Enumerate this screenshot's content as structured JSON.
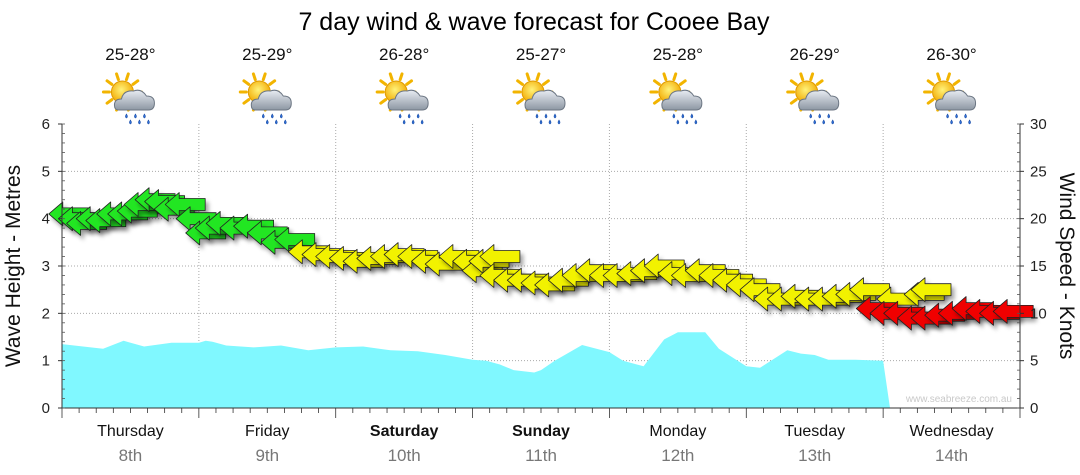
{
  "chart_data": {
    "type": "line",
    "title": "7 day wind & wave forecast for Cooee Bay",
    "ylabel_left": "Wave Height - Metres",
    "ylabel_right": "Wind Speed - Knots",
    "ylim_left": [
      0,
      6
    ],
    "ylim_right": [
      0,
      30
    ],
    "yticks_left": [
      "0",
      "1",
      "2",
      "3",
      "4",
      "5",
      "6"
    ],
    "yticks_right": [
      "0",
      "5",
      "10",
      "15",
      "20",
      "25",
      "30"
    ],
    "grid": true,
    "days": [
      {
        "day": "Thursday",
        "date": "8th",
        "bold": false,
        "temp": "25-28°",
        "icon": "sun-cloud-rain-icon"
      },
      {
        "day": "Friday",
        "date": "9th",
        "bold": false,
        "temp": "25-29°",
        "icon": "sun-cloud-rain-icon"
      },
      {
        "day": "Saturday",
        "date": "10th",
        "bold": true,
        "temp": "26-28°",
        "icon": "sun-cloud-rain-icon"
      },
      {
        "day": "Sunday",
        "date": "11th",
        "bold": true,
        "temp": "25-27°",
        "icon": "sun-cloud-rain-icon"
      },
      {
        "day": "Monday",
        "date": "12th",
        "bold": false,
        "temp": "25-28°",
        "icon": "sun-cloud-rain-icon"
      },
      {
        "day": "Tuesday",
        "date": "13th",
        "bold": false,
        "temp": "26-29°",
        "icon": "sun-cloud-rain-icon"
      },
      {
        "day": "Wednesday",
        "date": "14th",
        "bold": false,
        "temp": "26-30°",
        "icon": "sun-cloud-rain-icon"
      }
    ],
    "wave_series": {
      "units": "metres",
      "x_days": [
        0,
        0.3,
        0.45,
        0.6,
        0.8,
        1.0,
        1.05,
        1.1,
        1.2,
        1.4,
        1.6,
        1.8,
        2.0,
        2.2,
        2.4,
        2.6,
        2.8,
        3.0,
        3.1,
        3.2,
        3.3,
        3.45,
        3.5,
        3.6,
        3.8,
        4.0,
        4.1,
        4.25,
        4.4,
        4.5,
        4.7,
        4.8,
        5.0,
        5.1,
        5.3,
        5.4,
        5.5,
        5.6,
        5.8,
        6.0,
        6.05,
        6.1,
        6.2
      ],
      "values": [
        1.35,
        1.25,
        1.42,
        1.3,
        1.38,
        1.38,
        1.42,
        1.4,
        1.32,
        1.28,
        1.32,
        1.22,
        1.28,
        1.3,
        1.22,
        1.2,
        1.12,
        1.02,
        1.0,
        0.92,
        0.8,
        0.75,
        0.8,
        1.0,
        1.33,
        1.18,
        1.0,
        0.88,
        1.45,
        1.6,
        1.6,
        1.25,
        0.88,
        0.85,
        1.22,
        1.15,
        1.12,
        1.02,
        1.02,
        1.0,
        0.0,
        0.0,
        0.0
      ],
      "color": "#80f8ff"
    },
    "wind_series": {
      "units": "knots",
      "color_legend": {
        "green": "#22e622",
        "yellow": "#f2f200",
        "red": "#f00000"
      },
      "points": [
        [
          0.05,
          20.5,
          "green"
        ],
        [
          0.12,
          20.0,
          "green"
        ],
        [
          0.18,
          19.5,
          "green"
        ],
        [
          0.25,
          20.0,
          "green"
        ],
        [
          0.32,
          19.8,
          "green"
        ],
        [
          0.4,
          20.5,
          "green"
        ],
        [
          0.48,
          20.5,
          "green"
        ],
        [
          0.55,
          20.8,
          "green"
        ],
        [
          0.6,
          21.5,
          "green"
        ],
        [
          0.68,
          22.0,
          "green"
        ],
        [
          0.75,
          21.8,
          "green"
        ],
        [
          0.82,
          21.0,
          "green"
        ],
        [
          0.9,
          21.5,
          "green"
        ],
        [
          0.98,
          20.0,
          "green"
        ],
        [
          1.05,
          18.5,
          "green"
        ],
        [
          1.12,
          19.0,
          "green"
        ],
        [
          1.2,
          19.5,
          "green"
        ],
        [
          1.3,
          19.0,
          "green"
        ],
        [
          1.4,
          19.2,
          "green"
        ],
        [
          1.5,
          18.5,
          "green"
        ],
        [
          1.6,
          17.5,
          "green"
        ],
        [
          1.7,
          17.8,
          "green"
        ],
        [
          1.8,
          16.5,
          "yellow"
        ],
        [
          1.9,
          16.2,
          "yellow"
        ],
        [
          2.0,
          16.0,
          "yellow"
        ],
        [
          2.1,
          15.8,
          "yellow"
        ],
        [
          2.2,
          15.5,
          "yellow"
        ],
        [
          2.3,
          15.8,
          "yellow"
        ],
        [
          2.4,
          16.0,
          "yellow"
        ],
        [
          2.5,
          16.2,
          "yellow"
        ],
        [
          2.6,
          16.0,
          "yellow"
        ],
        [
          2.7,
          15.5,
          "yellow"
        ],
        [
          2.8,
          15.2,
          "yellow"
        ],
        [
          2.9,
          16.0,
          "yellow"
        ],
        [
          3.0,
          15.5,
          "yellow"
        ],
        [
          3.07,
          14.5,
          "yellow"
        ],
        [
          3.12,
          15.5,
          "yellow"
        ],
        [
          3.2,
          16.0,
          "yellow"
        ],
        [
          3.2,
          14.0,
          "yellow"
        ],
        [
          3.3,
          13.5,
          "yellow"
        ],
        [
          3.4,
          13.5,
          "yellow"
        ],
        [
          3.5,
          13.2,
          "yellow"
        ],
        [
          3.6,
          13.0,
          "yellow"
        ],
        [
          3.7,
          13.5,
          "yellow"
        ],
        [
          3.8,
          14.0,
          "yellow"
        ],
        [
          3.9,
          14.5,
          "yellow"
        ],
        [
          4.0,
          14.0,
          "yellow"
        ],
        [
          4.1,
          14.0,
          "yellow"
        ],
        [
          4.2,
          14.2,
          "yellow"
        ],
        [
          4.3,
          14.5,
          "yellow"
        ],
        [
          4.4,
          15.0,
          "yellow"
        ],
        [
          4.5,
          14.2,
          "yellow"
        ],
        [
          4.6,
          14.0,
          "yellow"
        ],
        [
          4.7,
          14.5,
          "yellow"
        ],
        [
          4.8,
          14.0,
          "yellow"
        ],
        [
          4.9,
          13.5,
          "yellow"
        ],
        [
          5.0,
          13.0,
          "yellow"
        ],
        [
          5.1,
          12.5,
          "yellow"
        ],
        [
          5.2,
          11.5,
          "yellow"
        ],
        [
          5.3,
          11.5,
          "yellow"
        ],
        [
          5.4,
          11.8,
          "yellow"
        ],
        [
          5.5,
          11.5,
          "yellow"
        ],
        [
          5.6,
          11.5,
          "yellow"
        ],
        [
          5.7,
          11.8,
          "yellow"
        ],
        [
          5.8,
          12.0,
          "yellow"
        ],
        [
          5.9,
          12.5,
          "yellow"
        ],
        [
          6.1,
          11.5,
          "yellow"
        ],
        [
          6.3,
          12.0,
          "yellow"
        ],
        [
          6.35,
          12.5,
          "yellow"
        ],
        [
          5.95,
          10.5,
          "red"
        ],
        [
          6.05,
          10.0,
          "red"
        ],
        [
          6.15,
          10.0,
          "red"
        ],
        [
          6.25,
          9.5,
          "red"
        ],
        [
          6.35,
          9.5,
          "red"
        ],
        [
          6.45,
          9.8,
          "red"
        ],
        [
          6.55,
          10.0,
          "red"
        ],
        [
          6.65,
          10.5,
          "red"
        ],
        [
          6.75,
          10.2,
          "red"
        ],
        [
          6.85,
          10.0,
          "red"
        ],
        [
          6.95,
          10.2,
          "red"
        ]
      ]
    },
    "watermark": "www.seabreeze.com.au"
  }
}
